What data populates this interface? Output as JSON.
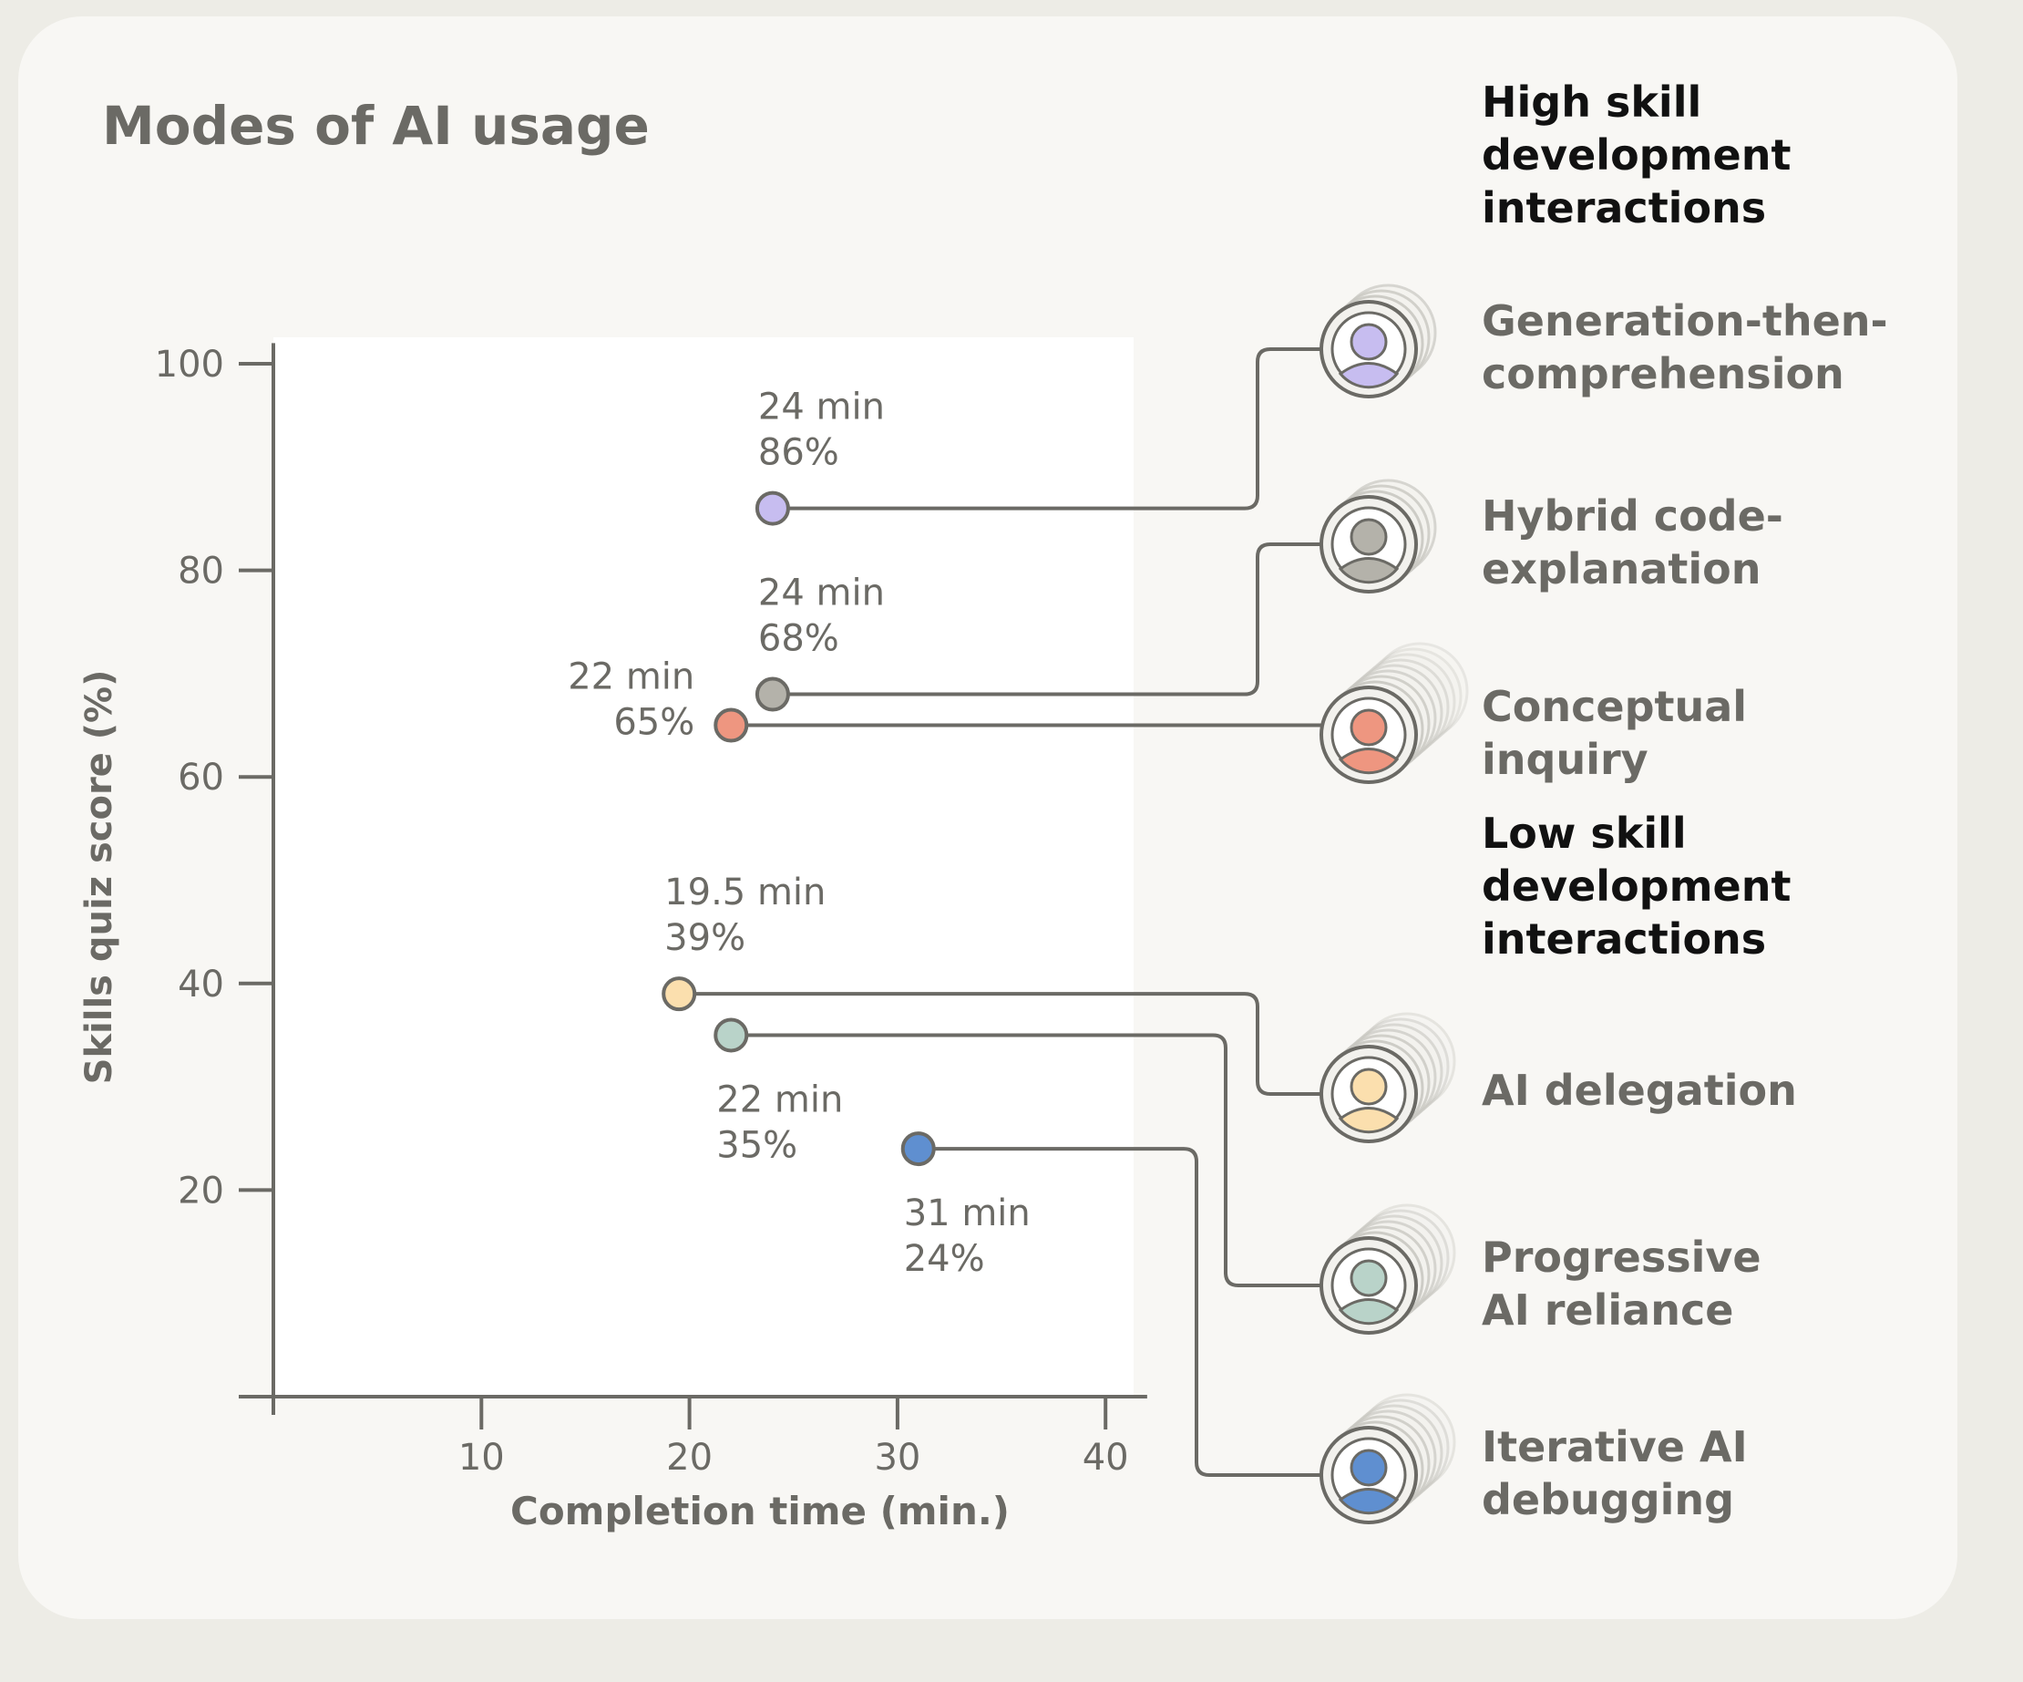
{
  "title": "Modes of AI usage",
  "colors": {
    "axis": "#6b6a65",
    "text": "#6b6a65",
    "heading": "#111111",
    "plot_bg": "#ffffff",
    "card_bg": "#f8f7f4",
    "page_bg": "#edece6"
  },
  "chart_data": {
    "type": "scatter",
    "xlabel": "Completion time (min.)",
    "ylabel": "Skills quiz score (%)",
    "xlim": [
      0,
      42
    ],
    "ylim": [
      0,
      102
    ],
    "xticks": [
      10,
      20,
      30,
      40
    ],
    "yticks": [
      20,
      40,
      60,
      80,
      100
    ],
    "grid": false,
    "groups": [
      {
        "heading": "High skill development interactions",
        "start_index": 0
      },
      {
        "heading": "Low skill development interactions",
        "start_index": 3
      }
    ],
    "points": [
      {
        "name": "Generation-then-comprehension",
        "x": 24,
        "y": 86,
        "label_time": "24 min",
        "label_score": "86%",
        "color": "#c7bdf0",
        "label_pos": "above"
      },
      {
        "name": "Hybrid code-explanation",
        "x": 24,
        "y": 68,
        "label_time": "24 min",
        "label_score": "68%",
        "color": "#b4b2aa",
        "label_pos": "above"
      },
      {
        "name": "Conceptual inquiry",
        "x": 22,
        "y": 65,
        "label_time": "22 min",
        "label_score": "65%",
        "color": "#ee9680",
        "label_pos": "left"
      },
      {
        "name": "AI delegation",
        "x": 19.5,
        "y": 39,
        "label_time": "19.5 min",
        "label_score": "39%",
        "color": "#fbdfae",
        "label_pos": "above"
      },
      {
        "name": "Progressive AI reliance",
        "x": 22,
        "y": 35,
        "label_time": "22 min",
        "label_score": "35%",
        "color": "#b9d3c9",
        "label_pos": "below"
      },
      {
        "name": "Iterative AI debugging",
        "x": 31,
        "y": 24,
        "label_time": "31 min",
        "label_score": "24%",
        "color": "#5f8fd0",
        "label_pos": "below"
      }
    ]
  }
}
